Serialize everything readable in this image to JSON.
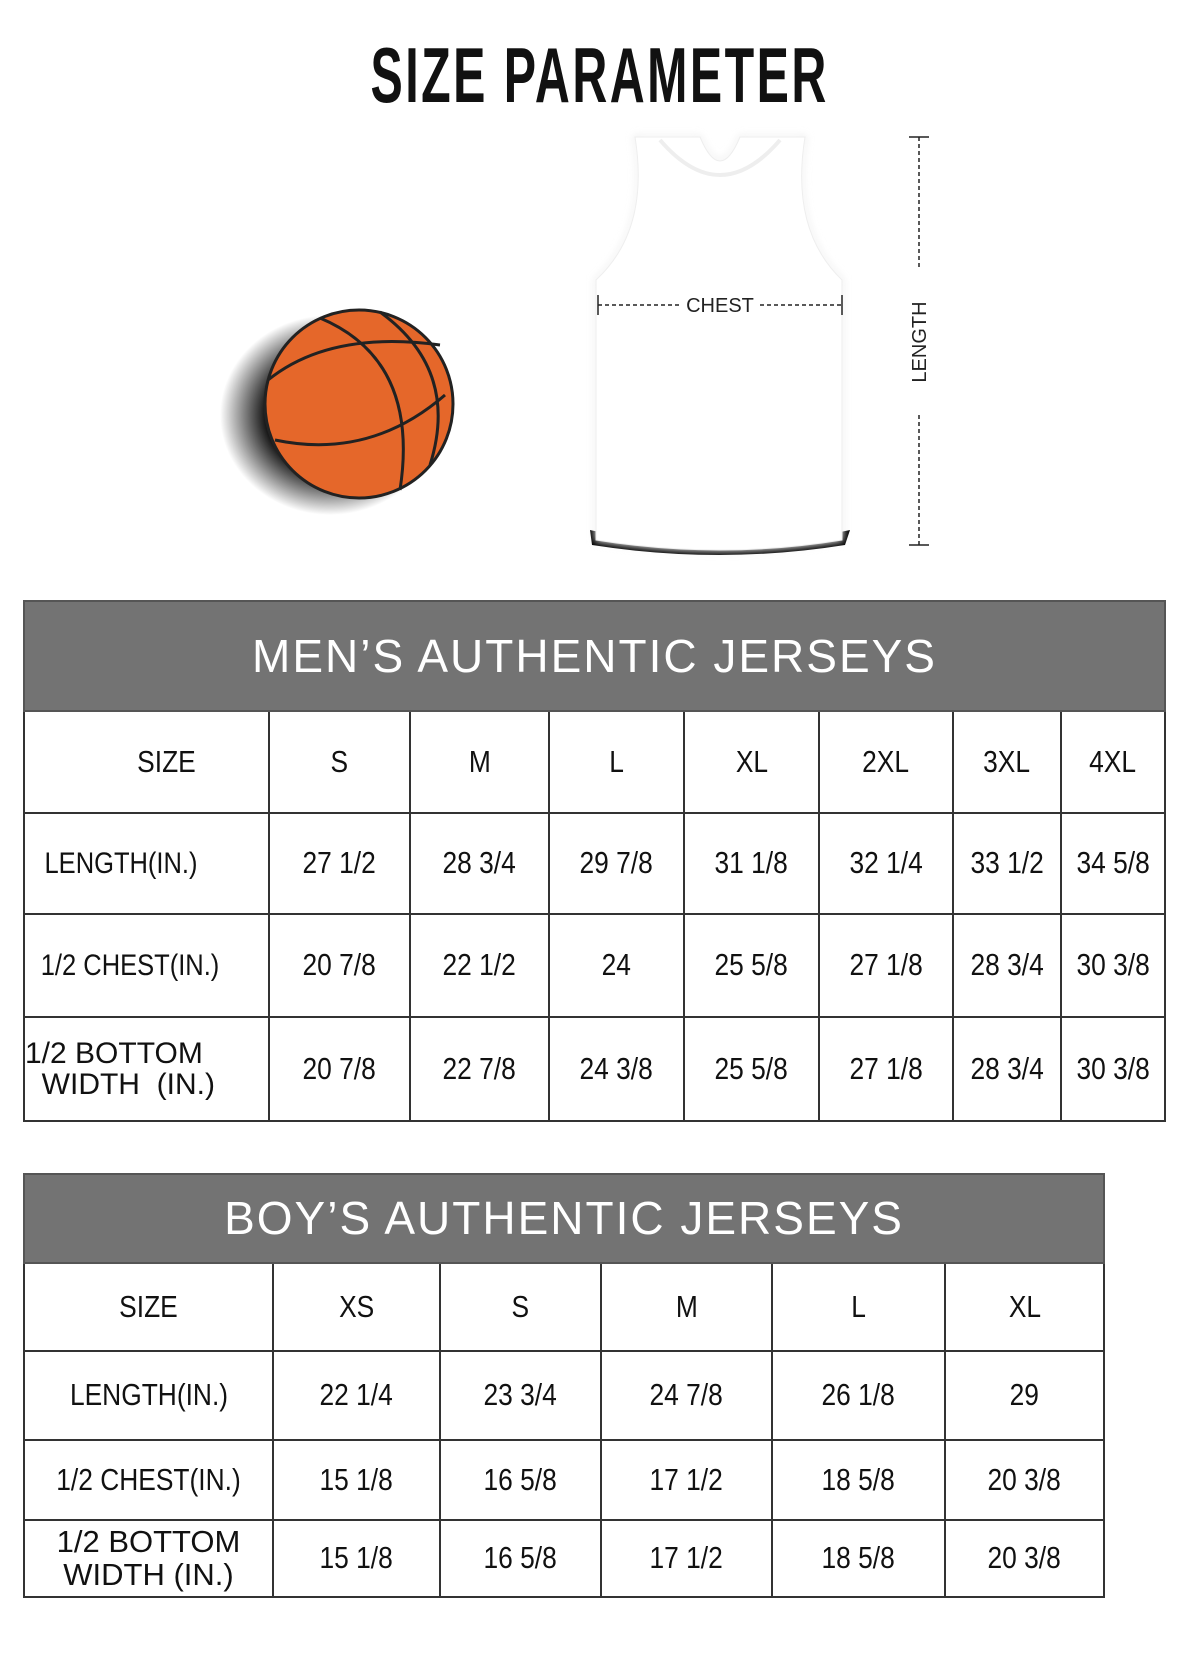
{
  "title": "SIZE PARAMETER",
  "illustration": {
    "chest_label": "CHEST",
    "length_label": "LENGTH",
    "ball_icon": "basketball-icon",
    "jersey_icon": "jersey-icon",
    "ball_color": "#E5672A"
  },
  "colors": {
    "table_header_bg": "#737373",
    "table_header_text": "#FFFFFF"
  },
  "mens": {
    "title": "MEN’S AUTHENTIC JERSEYS",
    "header": [
      "SIZE",
      "S",
      "M",
      "L",
      "XL",
      "2XL",
      "3XL",
      "4XL"
    ],
    "rows": [
      {
        "label": "LENGTH(IN.)",
        "values": [
          "27  1/2",
          "28  3/4",
          "29  7/8",
          "31  1/8",
          "32  1/4",
          "33  1/2",
          "34  5/8"
        ]
      },
      {
        "label": "1/2 CHEST(IN.)",
        "values": [
          "20  7/8",
          "22  1/2",
          "24",
          "25  5/8",
          "27  1/8",
          "28  3/4",
          "30  3/8"
        ]
      },
      {
        "label": "1/2 BOTTOM WIDTH  (IN.)",
        "label_lines": [
          "1/2 BOTTOM",
          "  WIDTH  (IN.)"
        ],
        "values": [
          "20  7/8",
          "22  7/8",
          "24  3/8",
          "25  5/8",
          "27  1/8",
          "28  3/4",
          "30  3/8"
        ]
      }
    ]
  },
  "boys": {
    "title": "BOY’S AUTHENTIC JERSEYS",
    "header": [
      "SIZE",
      "XS",
      "S",
      "M",
      "L",
      "XL"
    ],
    "rows": [
      {
        "label": "LENGTH(IN.)",
        "values": [
          "22  1/4",
          "23  3/4",
          "24  7/8",
          "26  1/8",
          "29"
        ]
      },
      {
        "label": "1/2 CHEST(IN.)",
        "values": [
          "15  1/8",
          "16  5/8",
          "17  1/2",
          "18  5/8",
          "20  3/8"
        ]
      },
      {
        "label": "1/2 BOTTOM WIDTH  (IN.)",
        "label_lines": [
          "1/2 BOTTOM",
          "WIDTH  (IN.)"
        ],
        "values": [
          "15  1/8",
          "16  5/8",
          "17  1/2",
          "18  5/8",
          "20  3/8"
        ]
      }
    ]
  }
}
